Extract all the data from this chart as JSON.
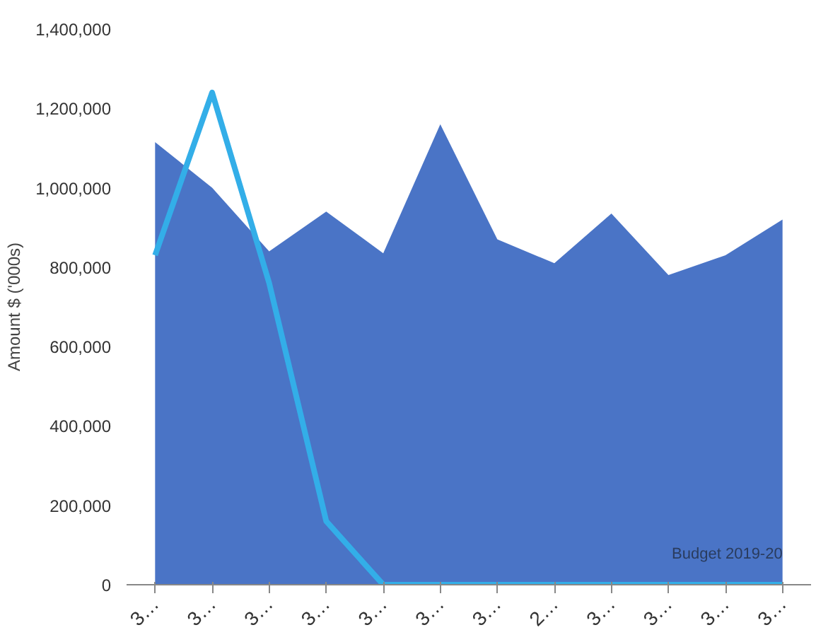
{
  "chart_data": {
    "type": "area",
    "ylabel": "Amount $ ('000s)",
    "categories": [
      "3…",
      "3…",
      "3…",
      "3…",
      "3…",
      "3…",
      "3…",
      "2…",
      "3…",
      "3…",
      "3…",
      "3…"
    ],
    "series": [
      {
        "name": "Budget 2019-20",
        "color": "#4a74c6",
        "values": [
          1115000,
          1000000,
          840000,
          940000,
          835000,
          1160000,
          870000,
          810000,
          935000,
          780000,
          830000,
          920000
        ]
      },
      {
        "type": "line",
        "color": "#33aee8",
        "values": [
          830000,
          1240000,
          760000,
          160000,
          0,
          0,
          0,
          0,
          0,
          0,
          0,
          0
        ]
      }
    ],
    "ylim": [
      0,
      1400000
    ],
    "yticks": [
      0,
      {
        "value": 200000,
        "label": "200,000"
      },
      {
        "value": 400000,
        "label": "400,000"
      },
      {
        "value": 600000,
        "label": "600,000"
      },
      {
        "value": 800000,
        "label": "800,000"
      },
      {
        "value": 1000000,
        "label": "1,000,000"
      },
      {
        "value": 1200000,
        "label": "1,200,000"
      },
      {
        "value": 1400000,
        "label": "1,400,000"
      }
    ],
    "grid": false,
    "line_style": "solid"
  }
}
